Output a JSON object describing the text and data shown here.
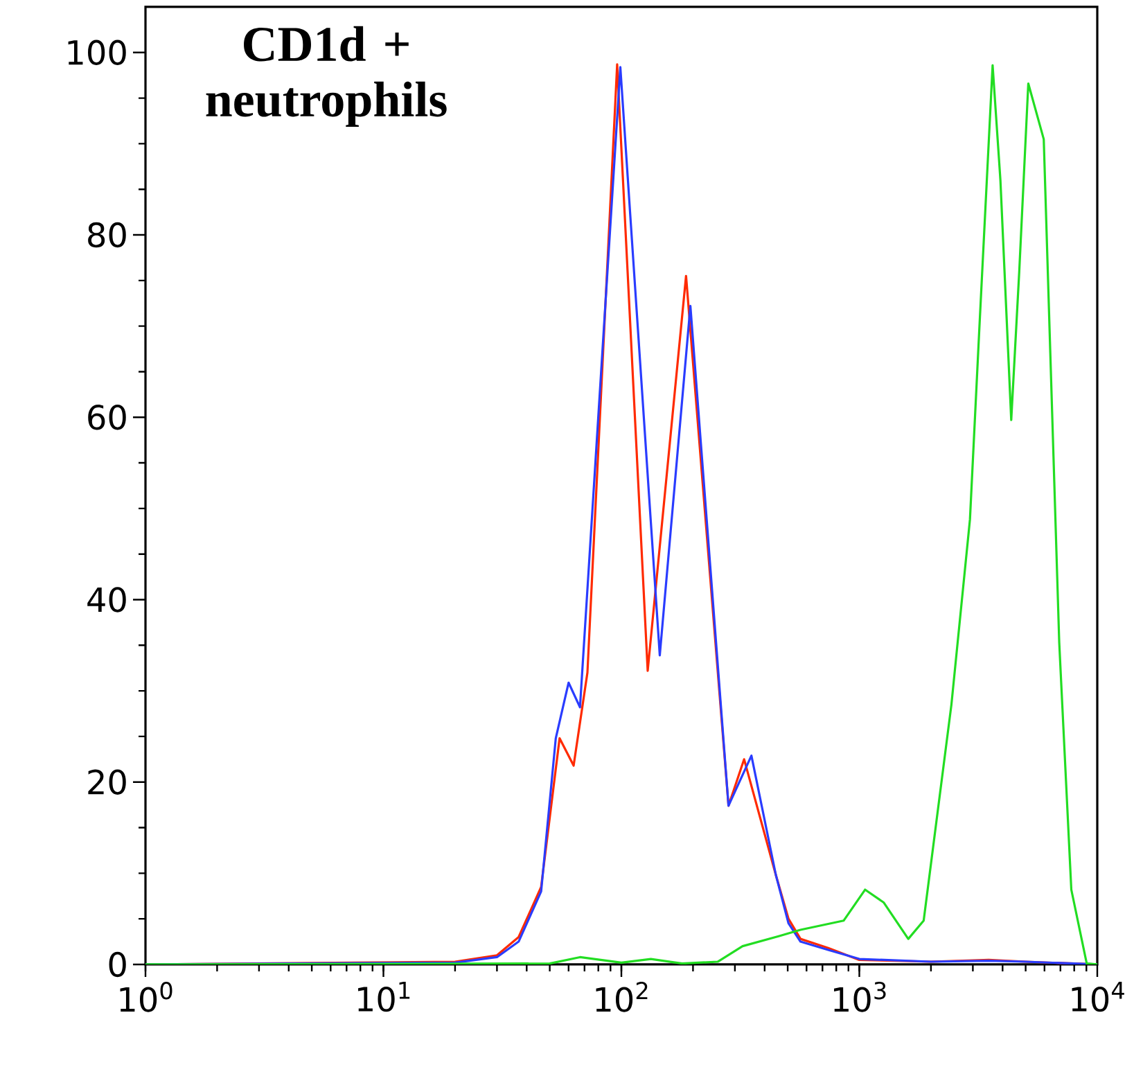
{
  "chart_data": {
    "type": "line",
    "title": "CD1d + neutrophils",
    "log": "x",
    "xlim": [
      1,
      10000
    ],
    "ylim": [
      0,
      105
    ],
    "xticks": [
      {
        "value": 1,
        "label": "10$^{0}$"
      },
      {
        "value": 10,
        "label": "10$^{1}$"
      },
      {
        "value": 100,
        "label": "10$^{2}$"
      },
      {
        "value": 1000,
        "label": "10$^{3}$"
      },
      {
        "value": 10000,
        "label": "10$^{4}$"
      }
    ],
    "yticks": [
      0,
      20,
      40,
      60,
      80,
      100
    ],
    "marker": "none",
    "line_style": "solid",
    "series": [
      {
        "color": "#ff2a00",
        "x": [
          1,
          20,
          30,
          37,
          46,
          55,
          63,
          72,
          96,
          129,
          187,
          282,
          328,
          446,
          504,
          566,
          740,
          1000,
          2000,
          3500,
          5000,
          10000
        ],
        "values": [
          0,
          0.3,
          1,
          3,
          8.5,
          24.8,
          21.8,
          32,
          98.7,
          32.2,
          75.5,
          17.4,
          22.5,
          9.8,
          5,
          2.8,
          1.8,
          0.5,
          0.3,
          0.5,
          0.3,
          0
        ]
      },
      {
        "color": "#2a3cff",
        "x": [
          1,
          20,
          30,
          37,
          46,
          53,
          60,
          67,
          99,
          145,
          195,
          282,
          352,
          446,
          504,
          566,
          740,
          1000,
          2000,
          3500,
          5000,
          10000
        ],
        "values": [
          0,
          0.2,
          0.8,
          2.5,
          8,
          24.8,
          30.9,
          28.2,
          98.4,
          33.9,
          72.2,
          17.4,
          22.9,
          9.8,
          4.5,
          2.5,
          1.6,
          0.6,
          0.3,
          0.4,
          0.3,
          0
        ]
      },
      {
        "color": "#22dd22",
        "x": [
          1,
          50,
          67,
          100,
          133,
          180,
          254,
          323,
          458,
          566,
          859,
          1057,
          1265,
          1606,
          1864,
          2438,
          2917,
          3187,
          3632,
          3917,
          4349,
          4700,
          5130,
          5957,
          6310,
          6920,
          7780,
          9030,
          10000
        ],
        "values": [
          0,
          0.1,
          0.8,
          0.2,
          0.6,
          0.1,
          0.3,
          2,
          3.1,
          3.8,
          4.8,
          8.2,
          6.8,
          2.8,
          4.8,
          28.5,
          48.8,
          69.2,
          98.6,
          86,
          59.7,
          76,
          96.6,
          90.5,
          69.2,
          35.3,
          8.2,
          0.1,
          0
        ]
      }
    ]
  }
}
